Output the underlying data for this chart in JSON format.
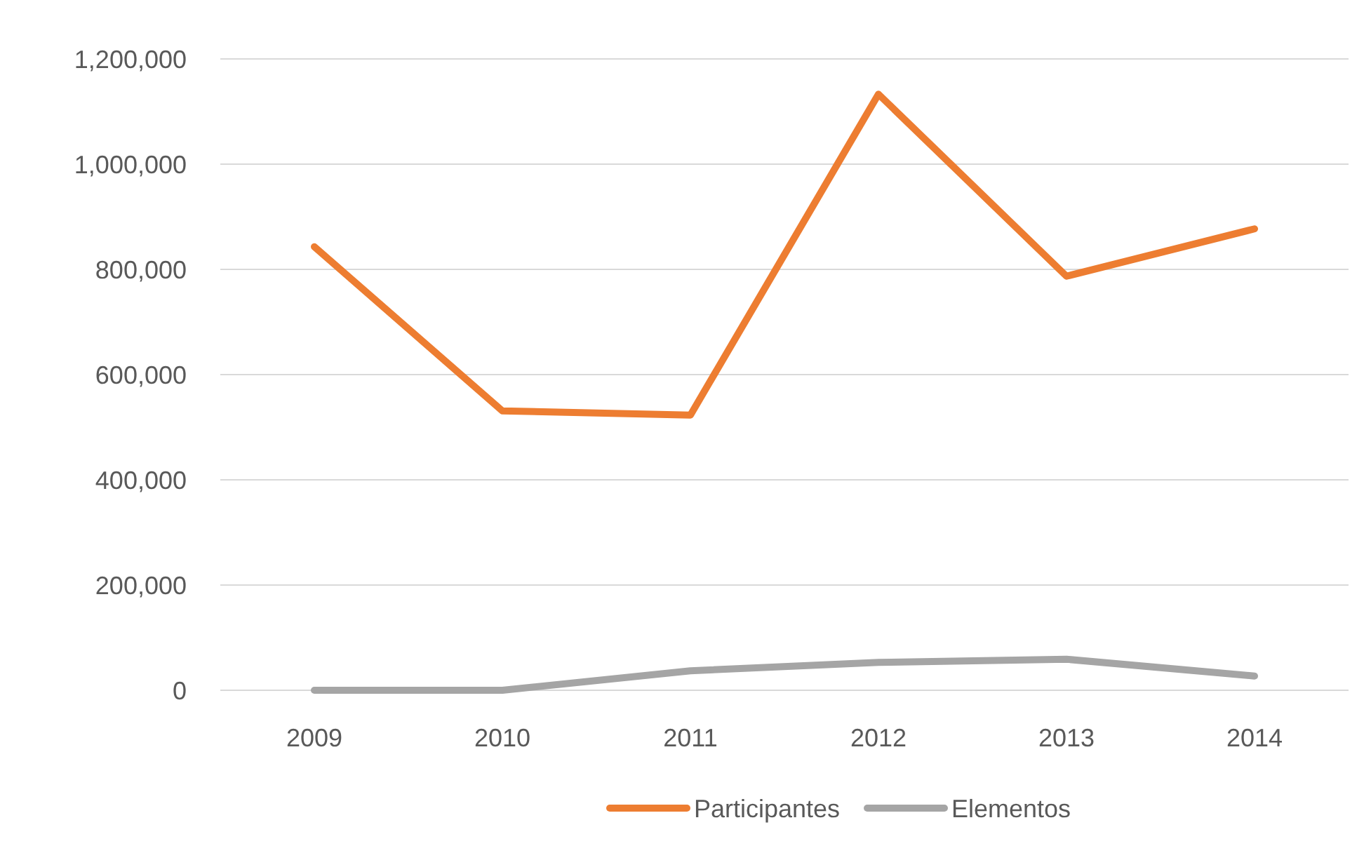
{
  "chart_data": {
    "type": "line",
    "categories": [
      "2009",
      "2010",
      "2011",
      "2012",
      "2013",
      "2014"
    ],
    "series": [
      {
        "name": "Participantes",
        "color": "#ed7d31",
        "values": [
          843000,
          531000,
          523000,
          1133000,
          787000,
          877000
        ]
      },
      {
        "name": "Elementos",
        "color": "#a5a5a5",
        "values": [
          0,
          0,
          37000,
          53000,
          59000,
          27000
        ]
      }
    ],
    "ylim": [
      0,
      1200000
    ],
    "yticks": [
      {
        "value": 0,
        "label": "0"
      },
      {
        "value": 200000,
        "label": "200,000"
      },
      {
        "value": 400000,
        "label": "400,000"
      },
      {
        "value": 600000,
        "label": "600,000"
      },
      {
        "value": 800000,
        "label": "800,000"
      },
      {
        "value": 1000000,
        "label": "1,000,000"
      },
      {
        "value": 1200000,
        "label": "1,200,000"
      }
    ],
    "grid": "y",
    "legend": "bottom",
    "marker": "none",
    "line_style": "solid"
  }
}
